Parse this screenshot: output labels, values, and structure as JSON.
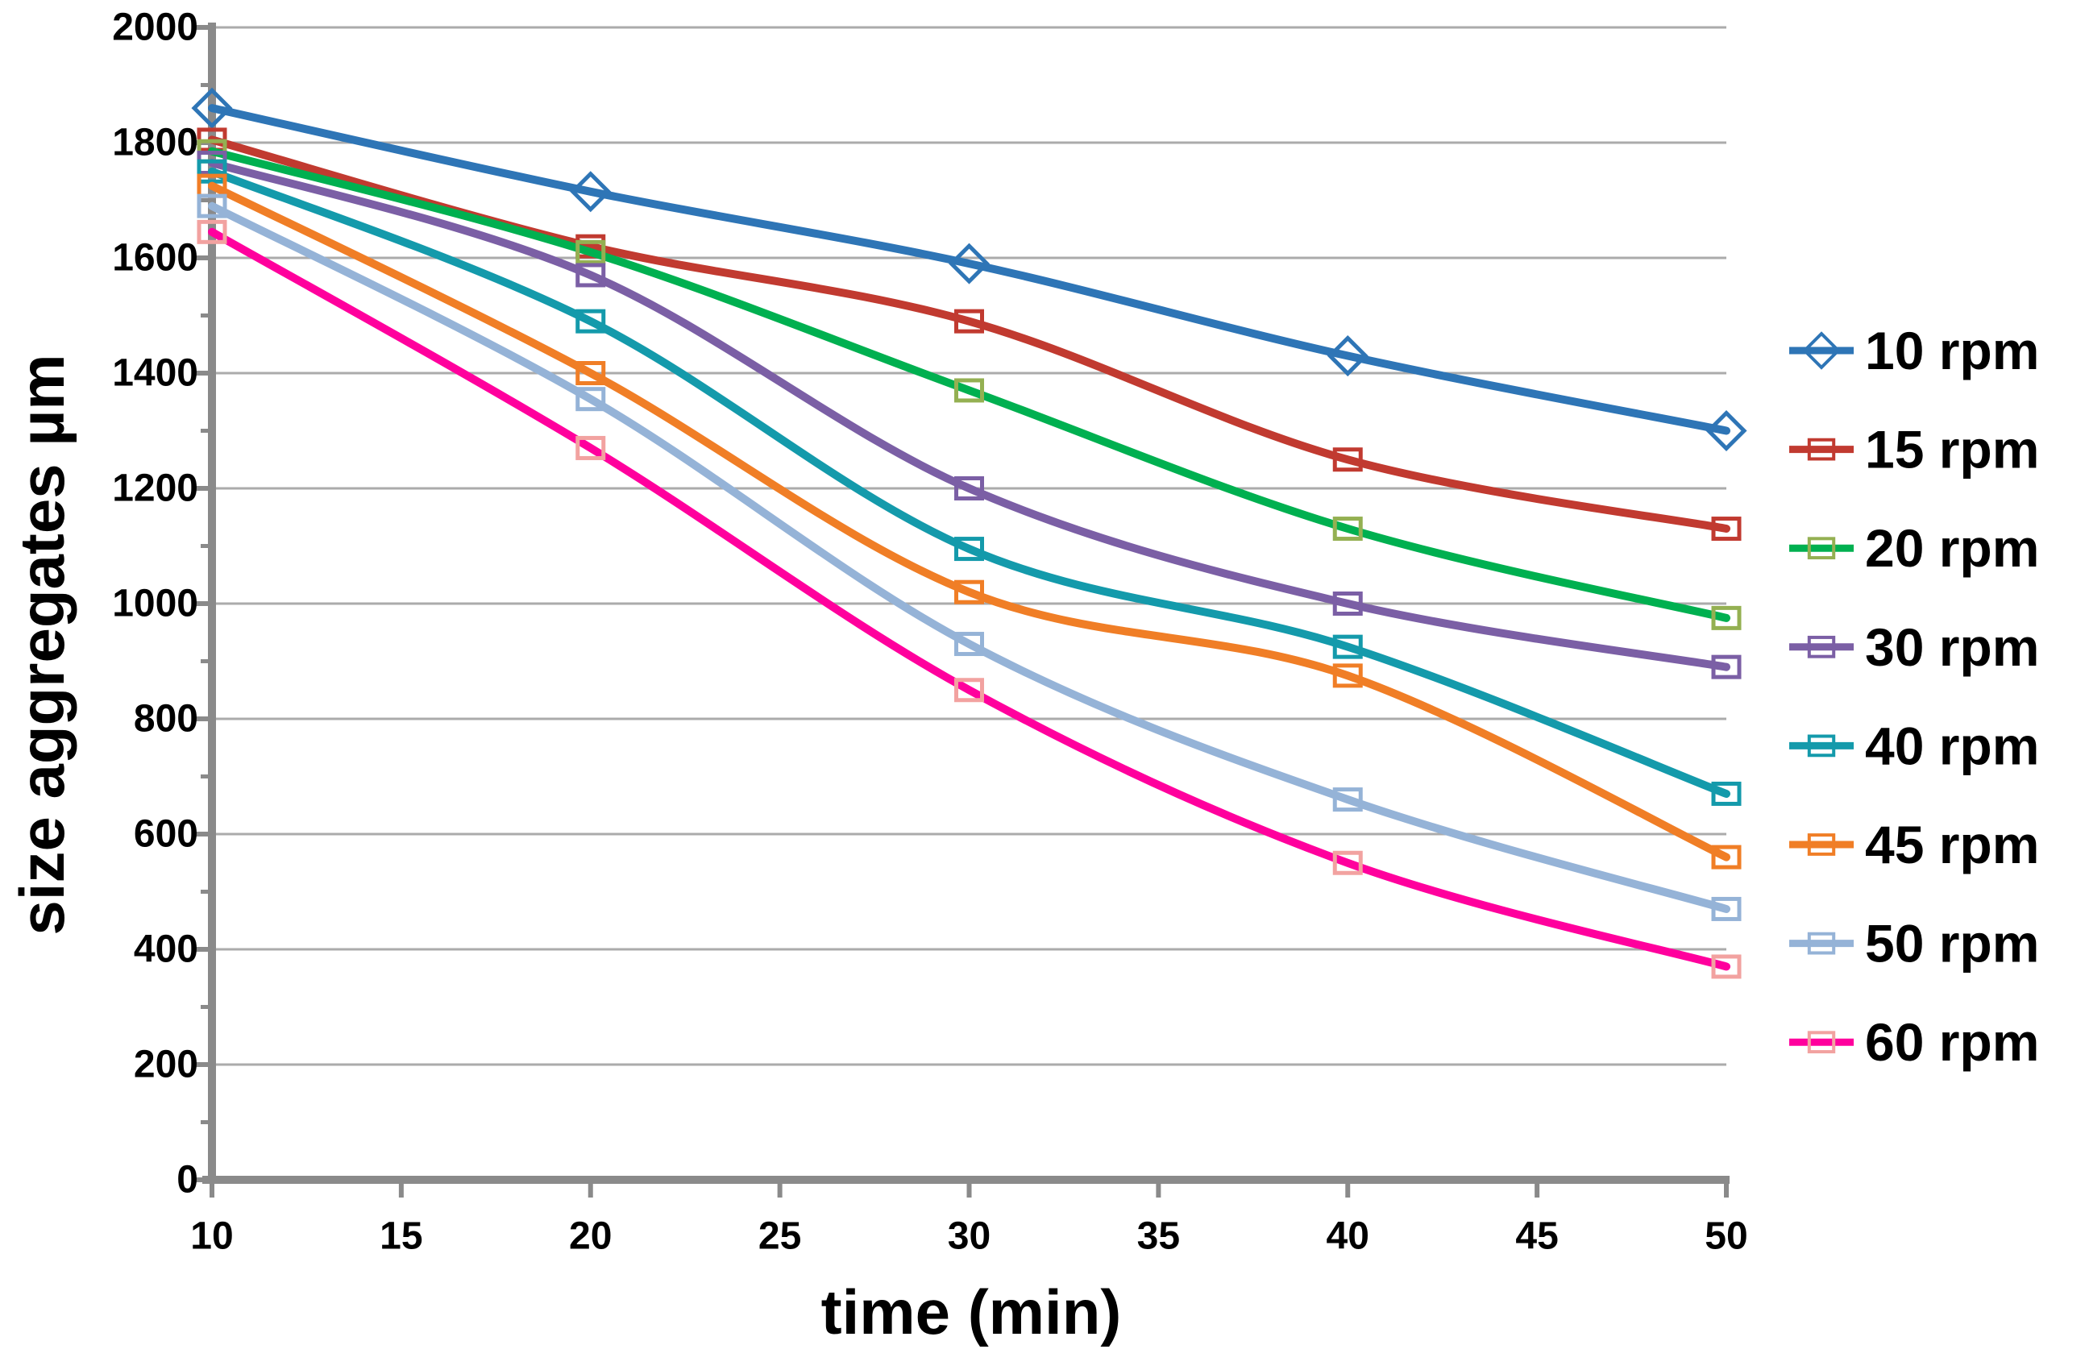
{
  "chart_data": {
    "type": "line",
    "title": "",
    "xlabel": "time (min)",
    "ylabel": "size aggregates µm",
    "x": [
      10,
      20,
      30,
      40,
      50
    ],
    "xlim": [
      10,
      50
    ],
    "ylim": [
      0,
      2000
    ],
    "xticks": [
      10,
      15,
      20,
      25,
      30,
      35,
      40,
      45,
      50
    ],
    "yticks": [
      0,
      200,
      400,
      600,
      800,
      1000,
      1200,
      1400,
      1600,
      1800,
      2000
    ],
    "y_minor_step": 100,
    "grid": "horizontal-major",
    "legend_position": "right",
    "line_style": "smooth",
    "series": [
      {
        "name": "10 rpm",
        "marker": "diamond",
        "color": "#2E75B6",
        "marker_color": "#2E75B6",
        "values": [
          1860,
          1715,
          1590,
          1430,
          1300
        ]
      },
      {
        "name": "15 rpm",
        "marker": "square",
        "color": "#C13A30",
        "marker_color": "#C13A30",
        "values": [
          1805,
          1620,
          1490,
          1250,
          1130
        ]
      },
      {
        "name": "20 rpm",
        "marker": "square",
        "color": "#00B050",
        "marker_color": "#94B052",
        "values": [
          1785,
          1610,
          1370,
          1130,
          975
        ]
      },
      {
        "name": "30 rpm",
        "marker": "square",
        "color": "#7B5FA5",
        "marker_color": "#7B5FA5",
        "values": [
          1765,
          1570,
          1200,
          1000,
          890
        ]
      },
      {
        "name": "40 rpm",
        "marker": "square",
        "color": "#149AAB",
        "marker_color": "#149AAB",
        "values": [
          1750,
          1490,
          1095,
          925,
          670
        ]
      },
      {
        "name": "45 rpm",
        "marker": "square",
        "color": "#F07E26",
        "marker_color": "#F07E26",
        "values": [
          1725,
          1400,
          1020,
          875,
          560
        ]
      },
      {
        "name": "50 rpm",
        "marker": "square",
        "color": "#95B3D7",
        "marker_color": "#95B3D7",
        "values": [
          1690,
          1355,
          930,
          660,
          470
        ]
      },
      {
        "name": "60 rpm",
        "marker": "square",
        "color": "#FF009D",
        "marker_color": "#F2A2A0",
        "values": [
          1645,
          1270,
          850,
          550,
          370
        ]
      }
    ]
  },
  "colors": {
    "background": "#FFFFFF",
    "gridline": "#ABABAB",
    "axis": "#8A8A8A",
    "text": "#000000"
  }
}
